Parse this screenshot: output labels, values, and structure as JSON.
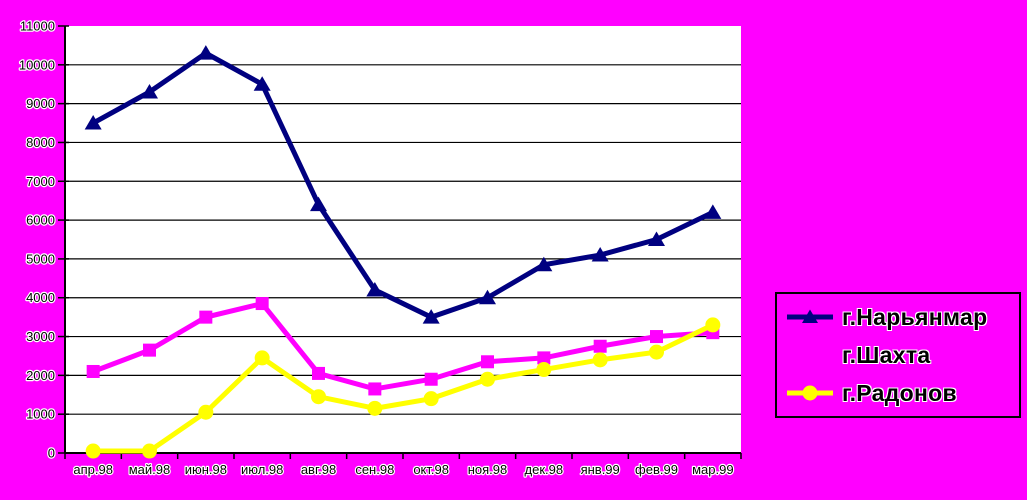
{
  "chart_data": {
    "type": "line",
    "categories": [
      "апр.98",
      "май.98",
      "июн.98",
      "июл.98",
      "авг.98",
      "сен.98",
      "окт.98",
      "ноя.98",
      "дек.98",
      "янв.99",
      "фев.99",
      "мар.99"
    ],
    "series": [
      {
        "name": "г.Нарьянмар",
        "color": "#000080",
        "marker": "triangle",
        "values": [
          8500,
          9300,
          10300,
          9500,
          6400,
          4200,
          3500,
          4000,
          4850,
          5100,
          5500,
          6200
        ]
      },
      {
        "name": "г.Шахта",
        "color": "#FF00FF",
        "marker": "square",
        "values": [
          2100,
          2650,
          3500,
          3850,
          2050,
          1650,
          1900,
          2350,
          2450,
          2750,
          3000,
          3100
        ]
      },
      {
        "name": "г.Радонов",
        "color": "#FFFF00",
        "marker": "circle",
        "values": [
          50,
          50,
          1050,
          2450,
          1450,
          1150,
          1400,
          1900,
          2150,
          2400,
          2600,
          3300
        ]
      }
    ],
    "ylim": [
      0,
      11000
    ],
    "ytick_step": 1000,
    "ytick_labels": [
      "0",
      "1000",
      "2000",
      "3000",
      "4000",
      "5000",
      "6000",
      "7000",
      "8000",
      "9000",
      "10000",
      "11000"
    ],
    "grid": true,
    "legend_position": "right",
    "colors": {
      "background": "#FF00FF",
      "plot_background": "#FFFFFF",
      "gridline": "#000000",
      "axis": "#000000",
      "label_text": "#000000",
      "label_halo": "#FFFFFF"
    }
  }
}
